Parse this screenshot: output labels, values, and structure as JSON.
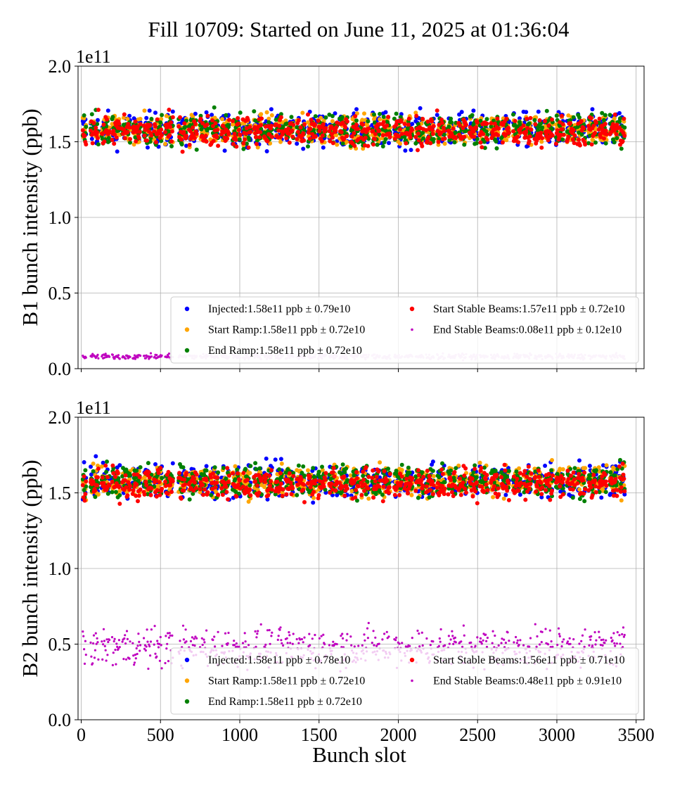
{
  "chart_data": {
    "type": "scatter",
    "title": "Fill 10709: Started on June 11, 2025 at 01:36:04",
    "xlabel": "Bunch slot",
    "xlim": [
      -20,
      3550
    ],
    "xticks": [
      "0",
      "500",
      "1000",
      "1500",
      "2000",
      "2500",
      "3000",
      "3500"
    ],
    "grid": true,
    "panels": [
      {
        "ylabel": "B1 bunch intensity (ppb)",
        "multiplier": "1e11",
        "ylim": [
          0.0,
          2.0
        ],
        "yticks": [
          "0.0",
          "0.5",
          "1.0",
          "1.5",
          "2.0"
        ],
        "legend_position": "lower-right",
        "series": [
          {
            "name": "Injected",
            "label": "Injected:1.58e11 ppb ± 0.79e10",
            "mean": 1.58,
            "std": 0.079,
            "color": "#0000ff"
          },
          {
            "name": "Start Ramp",
            "label": "Start Ramp:1.58e11 ppb ± 0.72e10",
            "mean": 1.58,
            "std": 0.072,
            "color": "#ffa500"
          },
          {
            "name": "End Ramp",
            "label": "End Ramp:1.58e11 ppb ± 0.72e10",
            "mean": 1.58,
            "std": 0.072,
            "color": "#008000"
          },
          {
            "name": "Start Stable Beams",
            "label": "Start Stable Beams:1.57e11 ppb ± 0.72e10",
            "mean": 1.57,
            "std": 0.072,
            "color": "#ff0000"
          },
          {
            "name": "End Stable Beams",
            "label": "End Stable Beams:0.08e11 ppb ± 0.12e10",
            "mean": 0.08,
            "std": 0.012,
            "color": "#bf00bf"
          }
        ]
      },
      {
        "ylabel": "B2 bunch intensity (ppb)",
        "multiplier": "1e11",
        "ylim": [
          0.0,
          2.0
        ],
        "yticks": [
          "0.0",
          "0.5",
          "1.0",
          "1.5",
          "2.0"
        ],
        "legend_position": "lower-right",
        "series": [
          {
            "name": "Injected",
            "label": "Injected:1.58e11 ppb ± 0.78e10",
            "mean": 1.58,
            "std": 0.078,
            "color": "#0000ff"
          },
          {
            "name": "Start Ramp",
            "label": "Start Ramp:1.58e11 ppb ± 0.72e10",
            "mean": 1.58,
            "std": 0.072,
            "color": "#ffa500"
          },
          {
            "name": "End Ramp",
            "label": "End Ramp:1.58e11 ppb ± 0.72e10",
            "mean": 1.58,
            "std": 0.072,
            "color": "#008000"
          },
          {
            "name": "Start Stable Beams",
            "label": "Start Stable Beams:1.56e11 ppb ± 0.71e10",
            "mean": 1.56,
            "std": 0.071,
            "color": "#ff0000"
          },
          {
            "name": "End Stable Beams",
            "label": "End Stable Beams:0.48e11 ppb ± 0.91e10",
            "mean": 0.48,
            "std": 0.091,
            "color": "#bf00bf"
          }
        ]
      }
    ],
    "bunch_trains": [
      [
        10,
        30
      ],
      [
        60,
        110
      ],
      [
        130,
        180
      ],
      [
        195,
        245
      ],
      [
        260,
        310
      ],
      [
        325,
        375
      ],
      [
        395,
        445
      ],
      [
        460,
        510
      ],
      [
        530,
        580
      ],
      [
        615,
        665
      ],
      [
        680,
        730
      ],
      [
        750,
        800
      ],
      [
        815,
        865
      ],
      [
        885,
        935
      ],
      [
        955,
        1005
      ],
      [
        1020,
        1070
      ],
      [
        1090,
        1140
      ],
      [
        1155,
        1205
      ],
      [
        1225,
        1275
      ],
      [
        1290,
        1340
      ],
      [
        1360,
        1410
      ],
      [
        1430,
        1480
      ],
      [
        1495,
        1545
      ],
      [
        1565,
        1615
      ],
      [
        1630,
        1680
      ],
      [
        1700,
        1750
      ],
      [
        1765,
        1815
      ],
      [
        1835,
        1885
      ],
      [
        1900,
        1950
      ],
      [
        1975,
        2025
      ],
      [
        2040,
        2090
      ],
      [
        2110,
        2160
      ],
      [
        2175,
        2225
      ],
      [
        2245,
        2295
      ],
      [
        2315,
        2365
      ],
      [
        2380,
        2430
      ],
      [
        2450,
        2500
      ],
      [
        2515,
        2565
      ],
      [
        2585,
        2635
      ],
      [
        2650,
        2700
      ],
      [
        2725,
        2775
      ],
      [
        2790,
        2840
      ],
      [
        2860,
        2910
      ],
      [
        2925,
        2975
      ],
      [
        2995,
        3045
      ],
      [
        3065,
        3115
      ],
      [
        3130,
        3180
      ],
      [
        3200,
        3250
      ],
      [
        3265,
        3315
      ],
      [
        3335,
        3385
      ],
      [
        3395,
        3430
      ]
    ]
  }
}
